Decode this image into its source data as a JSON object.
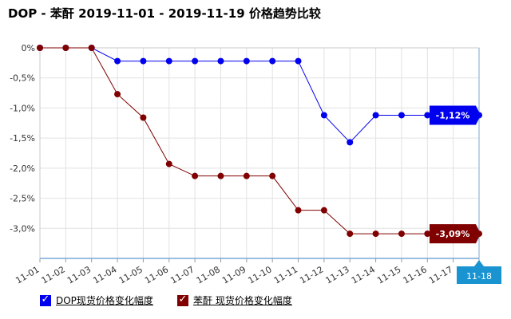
{
  "chart_data": {
    "type": "line",
    "title": "DOP - 苯酐 2019-11-01 - 2019-11-19 价格趋势比较",
    "categories": [
      "11-01",
      "11-02",
      "11-03",
      "11-04",
      "11-05",
      "11-06",
      "11-07",
      "11-08",
      "11-09",
      "11-10",
      "11-11",
      "11-12",
      "11-13",
      "11-14",
      "11-15",
      "11-16",
      "11-17",
      "11-18"
    ],
    "y_ticks": [
      "0%",
      "-0,5%",
      "-1,0%",
      "-1,5%",
      "-2,0%",
      "-2,5%",
      "-3,0%"
    ],
    "ylim": [
      -3.5,
      0
    ],
    "grid": true,
    "legend_position": "bottom-left",
    "series": [
      {
        "name": "DOP现货价格变化幅度",
        "color": "#0000ee",
        "values": [
          0,
          0,
          0,
          -0.22,
          -0.22,
          -0.22,
          -0.22,
          -0.22,
          -0.22,
          -0.22,
          -0.22,
          -1.12,
          -1.57,
          -1.12,
          -1.12,
          -1.12,
          -1.12,
          -1.12
        ],
        "end_label": "-1,12%"
      },
      {
        "name": "苯酐 现货价格变化幅度",
        "color": "#800000",
        "values": [
          0,
          0,
          0,
          -0.77,
          -1.16,
          -1.93,
          -2.13,
          -2.13,
          -2.13,
          -2.13,
          -2.7,
          -2.7,
          -3.09,
          -3.09,
          -3.09,
          -3.09,
          -3.09,
          -3.09
        ],
        "end_label": "-3,09%"
      }
    ],
    "hover_label": "11-18"
  }
}
